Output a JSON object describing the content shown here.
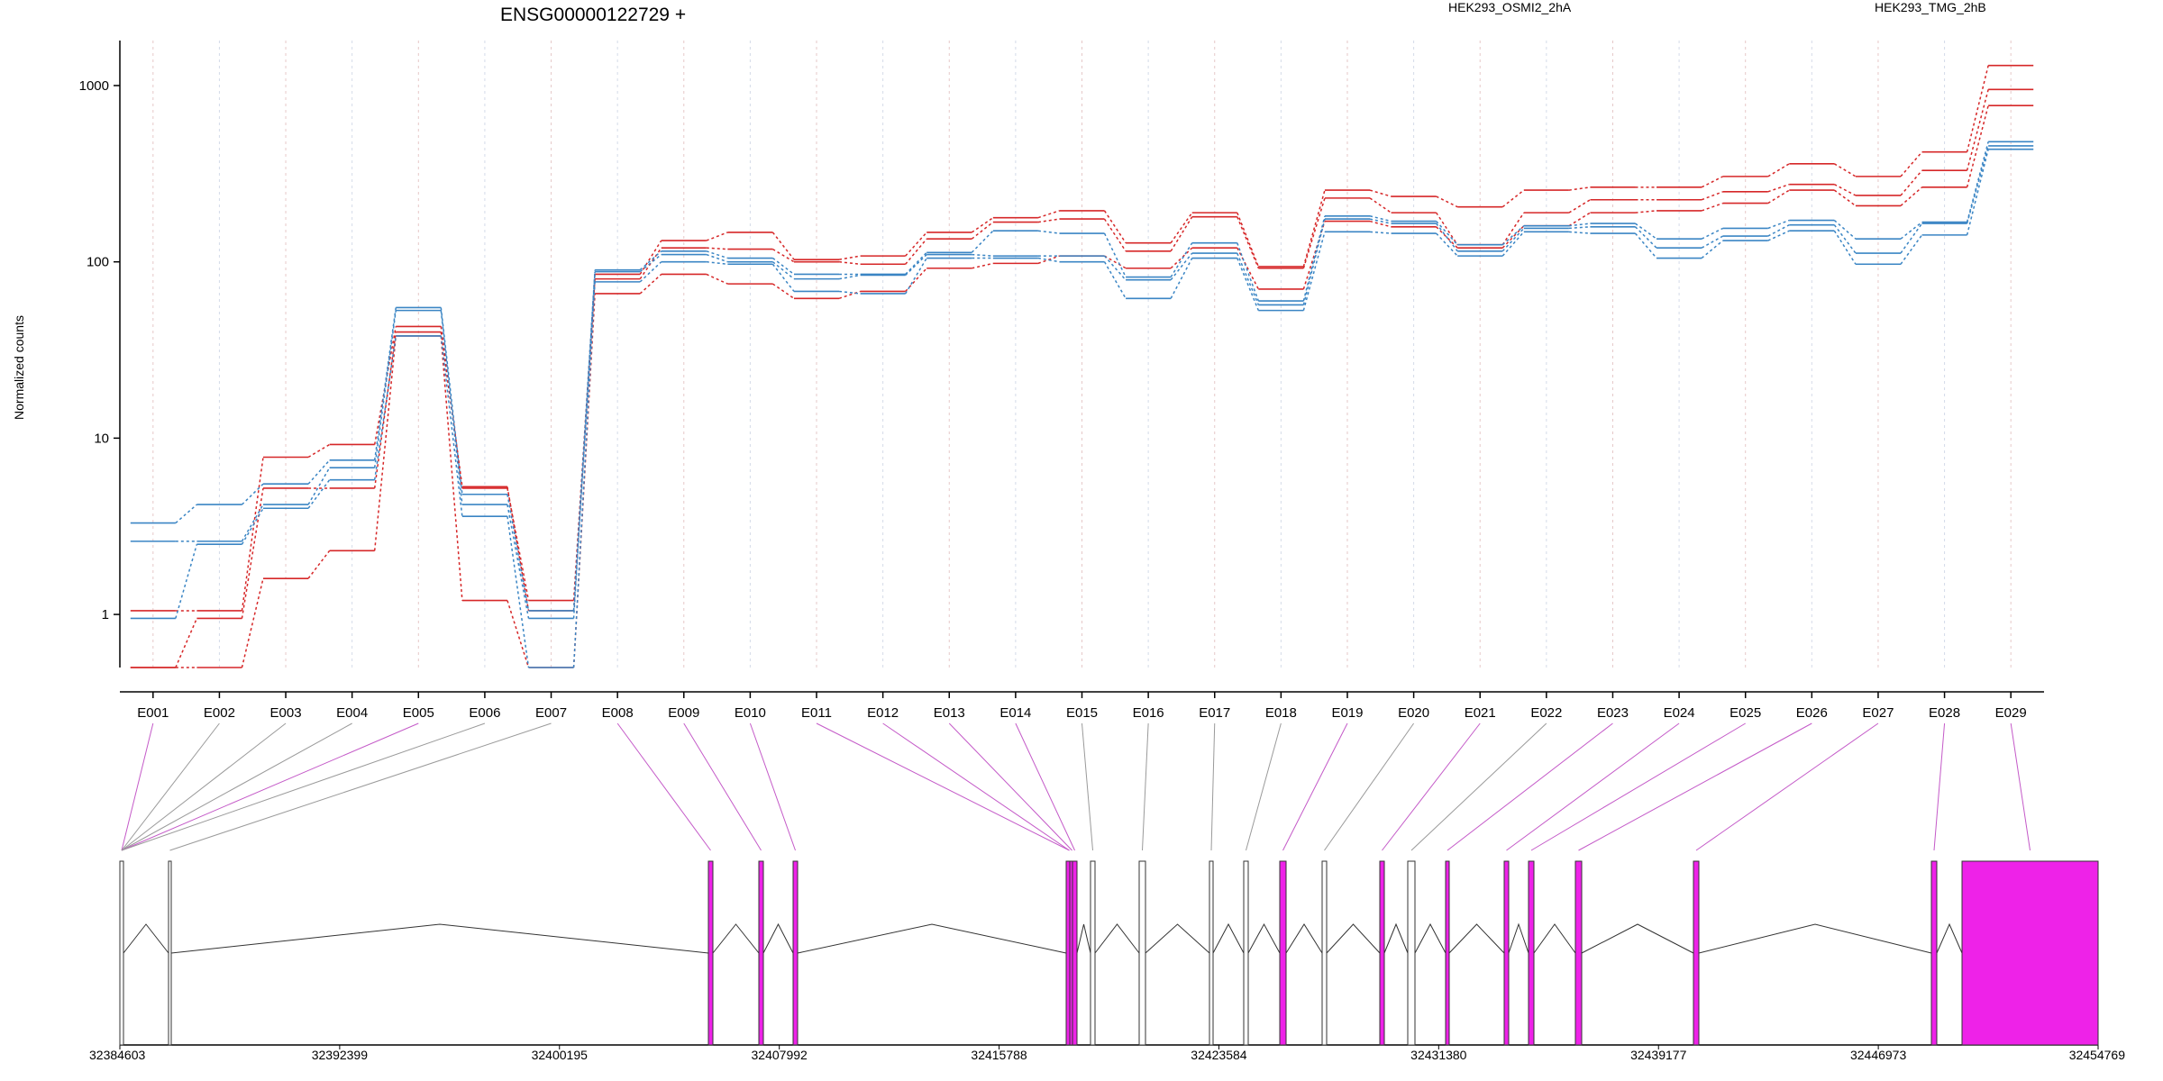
{
  "chart_data": {
    "type": "line",
    "title": "ENSG00000122729 +",
    "ylabel": "Normalized counts",
    "yscale": "log",
    "ylim": [
      0.5,
      1800
    ],
    "yticks": [
      "1",
      "10",
      "100",
      "1000"
    ],
    "categories": [
      "E001",
      "E002",
      "E003",
      "E004",
      "E005",
      "E006",
      "E007",
      "E008",
      "E009",
      "E010",
      "E011",
      "E012",
      "E013",
      "E014",
      "E015",
      "E016",
      "E017",
      "E018",
      "E019",
      "E020",
      "E021",
      "E022",
      "E023",
      "E024",
      "E025",
      "E026",
      "E027",
      "E028",
      "E029"
    ],
    "legend": [
      {
        "name": "HEK293_OSMI2_2hA",
        "color": "#d62728"
      },
      {
        "name": "HEK293_TMG_2hB",
        "color": "#3a85c4"
      }
    ],
    "series": [
      {
        "group": "HEK293_OSMI2_2hA",
        "color": "#d62728",
        "values": [
          1.05,
          1.05,
          7.8,
          9.2,
          43,
          5.2,
          1.2,
          85,
          132,
          147,
          103,
          108,
          147,
          178,
          195,
          128,
          190,
          94,
          255,
          235,
          205,
          255,
          265,
          265,
          305,
          360,
          305,
          420,
          1300
        ]
      },
      {
        "group": "HEK293_OSMI2_2hA",
        "color": "#d62728",
        "values": [
          0.5,
          0.95,
          5.2,
          5.2,
          40,
          5.3,
          1.05,
          80,
          120,
          118,
          100,
          97,
          135,
          168,
          175,
          115,
          180,
          92,
          230,
          190,
          125,
          190,
          225,
          225,
          250,
          275,
          238,
          330,
          950
        ]
      },
      {
        "group": "HEK293_OSMI2_2hA",
        "color": "#d62728",
        "values": [
          0.5,
          0.5,
          1.6,
          2.3,
          38,
          1.2,
          0.5,
          66,
          85,
          75,
          62,
          68,
          92,
          98,
          108,
          92,
          120,
          70,
          170,
          158,
          120,
          160,
          190,
          195,
          215,
          255,
          208,
          265,
          770
        ]
      },
      {
        "group": "HEK293_TMG_2hB",
        "color": "#3a85c4",
        "values": [
          3.3,
          4.2,
          5.5,
          7.5,
          55,
          4.8,
          1.05,
          90,
          115,
          105,
          85,
          85,
          113,
          150,
          145,
          82,
          128,
          60,
          182,
          170,
          125,
          160,
          165,
          135,
          155,
          172,
          135,
          168,
          480
        ]
      },
      {
        "group": "HEK293_TMG_2hB",
        "color": "#3a85c4",
        "values": [
          2.6,
          2.6,
          4.2,
          6.8,
          53,
          4.2,
          0.95,
          88,
          110,
          100,
          80,
          84,
          110,
          108,
          108,
          79,
          112,
          57,
          175,
          165,
          115,
          155,
          158,
          120,
          140,
          162,
          112,
          165,
          455
        ]
      },
      {
        "group": "HEK293_TMG_2hB",
        "color": "#3a85c4",
        "values": [
          0.95,
          2.5,
          4.0,
          5.8,
          38,
          3.6,
          0.5,
          77,
          100,
          97,
          68,
          66,
          105,
          105,
          100,
          62,
          105,
          53,
          148,
          145,
          108,
          148,
          145,
          105,
          132,
          150,
          97,
          142,
          435
        ]
      }
    ],
    "gene_model": {
      "start_label": "32384603",
      "end_label": "32454769",
      "position_ticks": [
        "32384603",
        "32392399",
        "32400195",
        "32407992",
        "32415788",
        "32423584",
        "32431380",
        "32439177",
        "32446973",
        "32454769"
      ],
      "highlight_color": "#ee22e8",
      "exon_colors": [
        "#ee22e8",
        "#ffffff",
        "#ffffff",
        "#ffffff",
        "#ee22e8",
        "#ffffff",
        "#ffffff",
        "#ee22e8",
        "#ee22e8",
        "#ee22e8",
        "#ee22e8",
        "#ee22e8",
        "#ee22e8",
        "#ee22e8",
        "#ffffff",
        "#ffffff",
        "#ffffff",
        "#ffffff",
        "#ee22e8",
        "#ffffff",
        "#ee22e8",
        "#ffffff",
        "#ee22e8",
        "#ee22e8",
        "#ee22e8",
        "#ee22e8",
        "#ee22e8",
        "#ee22e8",
        "#ee22e8"
      ]
    }
  }
}
